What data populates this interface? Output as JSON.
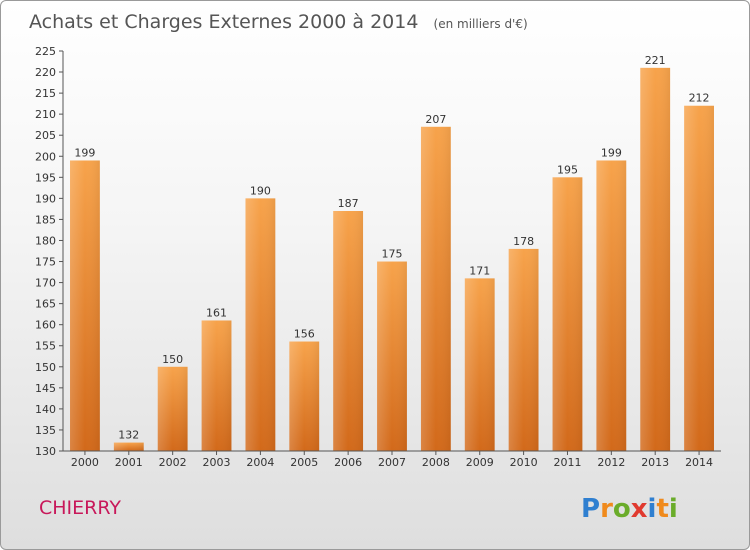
{
  "chart_data": {
    "type": "bar",
    "title": "Achats et Charges Externes 2000 à 2014",
    "subtitle": "(en milliers d'€)",
    "categories": [
      "2000",
      "2001",
      "2002",
      "2003",
      "2004",
      "2005",
      "2006",
      "2007",
      "2008",
      "2009",
      "2010",
      "2011",
      "2012",
      "2013",
      "2014"
    ],
    "values": [
      199,
      132,
      150,
      161,
      190,
      156,
      187,
      175,
      207,
      171,
      178,
      195,
      199,
      221,
      212
    ],
    "ylim": [
      130,
      225
    ],
    "yticks": [
      130,
      135,
      140,
      145,
      150,
      155,
      160,
      165,
      170,
      175,
      180,
      185,
      190,
      195,
      200,
      205,
      210,
      215,
      220,
      225
    ],
    "xlabel": "",
    "ylabel": "",
    "grid": false,
    "legend": "none",
    "bar_color_top": "#f7a34b",
    "bar_color_bottom": "#d2691a"
  },
  "footer": {
    "place": "CHIERRY",
    "place_color": "#c8185a",
    "brand": "Proxiti"
  }
}
